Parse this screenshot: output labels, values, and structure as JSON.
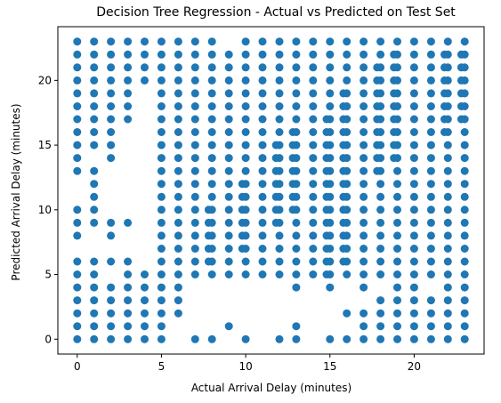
{
  "chart_data": {
    "type": "scatter",
    "title": "Decision Tree Regression - Actual vs Predicted on Test Set",
    "xlabel": "Actual Arrival Delay (minutes)",
    "ylabel": "Predicted Arrival Delay (minutes)",
    "xlim": [
      -1.15,
      24.15
    ],
    "ylim": [
      -1.15,
      24.15
    ],
    "xticks": [
      0,
      5,
      10,
      15,
      20
    ],
    "yticks": [
      0,
      5,
      10,
      15,
      20
    ],
    "grid": false,
    "marker_color": "#1f77b4",
    "series": [
      {
        "columns": [
          {
            "x": 0,
            "y": [
              0,
              1,
              2,
              3,
              4,
              5,
              6,
              8,
              9,
              10,
              13,
              14,
              15,
              16,
              17,
              18,
              19,
              20,
              21,
              22,
              23
            ]
          },
          {
            "x": 1,
            "y": [
              0,
              1,
              2,
              3,
              4,
              5,
              6,
              9,
              10,
              11,
              12,
              13,
              15,
              16,
              17,
              18,
              19,
              20,
              21,
              22,
              23
            ]
          },
          {
            "x": 2,
            "y": [
              0,
              1,
              2,
              3,
              4,
              6,
              8,
              9,
              14,
              15,
              16,
              17,
              18,
              19,
              20,
              21,
              22,
              23
            ]
          },
          {
            "x": 3,
            "y": [
              0,
              1,
              2,
              3,
              4,
              5,
              6,
              9,
              17,
              18,
              19,
              20,
              21,
              22,
              23
            ]
          },
          {
            "x": 4,
            "y": [
              0,
              1,
              2,
              3,
              4,
              5,
              20,
              21,
              22,
              23
            ]
          },
          {
            "x": 5,
            "y": [
              0,
              1,
              2,
              3,
              4,
              5,
              6,
              7,
              8,
              9,
              10,
              11,
              12,
              13,
              14,
              15,
              16,
              17,
              18,
              19,
              20,
              21,
              22,
              23
            ]
          },
          {
            "x": 6,
            "y": [
              2,
              3,
              4,
              5,
              6,
              7,
              8,
              9,
              10,
              11,
              12,
              13,
              14,
              15,
              16,
              17,
              18,
              19,
              20,
              21,
              22,
              23
            ]
          },
          {
            "x": 7,
            "y": [
              0,
              5,
              6,
              7,
              8,
              9,
              10,
              11,
              12,
              13,
              14,
              15,
              16,
              17,
              18,
              19,
              20,
              21,
              22,
              23
            ]
          },
          {
            "x": 8,
            "y": [
              0,
              5,
              6,
              7,
              8,
              9,
              10,
              11,
              12,
              13,
              14,
              15,
              16,
              17,
              18,
              19,
              20,
              21,
              22,
              23
            ]
          },
          {
            "x": 9,
            "y": [
              1,
              5,
              6,
              7,
              8,
              9,
              10,
              11,
              12,
              13,
              14,
              15,
              16,
              17,
              18,
              19,
              20,
              21,
              22
            ]
          },
          {
            "x": 10,
            "y": [
              0,
              5,
              6,
              7,
              8,
              9,
              10,
              11,
              12,
              13,
              14,
              15,
              16,
              17,
              18,
              19,
              20,
              21,
              22,
              23
            ]
          },
          {
            "x": 11,
            "y": [
              5,
              6,
              7,
              8,
              9,
              10,
              11,
              12,
              13,
              14,
              15,
              16,
              17,
              18,
              19,
              20,
              21,
              22,
              23
            ]
          },
          {
            "x": 12,
            "y": [
              0,
              5,
              6,
              7,
              8,
              9,
              10,
              11,
              12,
              13,
              14,
              15,
              16,
              17,
              18,
              19,
              20,
              21,
              22,
              23
            ]
          },
          {
            "x": 13,
            "y": [
              0,
              1,
              4,
              5,
              6,
              7,
              8,
              9,
              10,
              11,
              12,
              13,
              14,
              15,
              16,
              17,
              18,
              19,
              20,
              21,
              22,
              23
            ]
          },
          {
            "x": 14,
            "y": [
              5,
              6,
              7,
              8,
              9,
              10,
              11,
              12,
              13,
              14,
              15,
              16,
              17,
              18,
              19,
              20,
              21,
              22,
              23
            ]
          },
          {
            "x": 15,
            "y": [
              0,
              4,
              5,
              6,
              7,
              8,
              9,
              10,
              11,
              12,
              13,
              14,
              15,
              16,
              17,
              18,
              19,
              20,
              21,
              22,
              23
            ]
          },
          {
            "x": 16,
            "y": [
              0,
              2,
              5,
              6,
              7,
              8,
              9,
              10,
              11,
              12,
              13,
              14,
              15,
              16,
              17,
              18,
              19,
              20,
              21,
              22,
              23
            ]
          },
          {
            "x": 17,
            "y": [
              0,
              1,
              2,
              4,
              5,
              6,
              7,
              8,
              9,
              10,
              11,
              12,
              13,
              14,
              15,
              16,
              17,
              18,
              19,
              20,
              21,
              22,
              23
            ]
          },
          {
            "x": 18,
            "y": [
              0,
              1,
              2,
              3,
              5,
              6,
              7,
              8,
              9,
              10,
              11,
              12,
              13,
              14,
              15,
              16,
              17,
              18,
              19,
              20,
              21,
              22,
              23
            ]
          },
          {
            "x": 19,
            "y": [
              0,
              1,
              2,
              3,
              4,
              5,
              6,
              7,
              8,
              9,
              10,
              11,
              12,
              13,
              14,
              15,
              16,
              17,
              18,
              19,
              20,
              21,
              22,
              23
            ]
          },
          {
            "x": 20,
            "y": [
              0,
              1,
              2,
              3,
              4,
              5,
              6,
              7,
              8,
              9,
              10,
              11,
              12,
              13,
              14,
              15,
              16,
              17,
              18,
              19,
              20,
              21,
              22,
              23
            ]
          },
          {
            "x": 21,
            "y": [
              0,
              1,
              2,
              3,
              5,
              6,
              7,
              8,
              9,
              10,
              11,
              12,
              13,
              14,
              15,
              16,
              17,
              18,
              19,
              20,
              21,
              22,
              23
            ]
          },
          {
            "x": 22,
            "y": [
              0,
              1,
              2,
              3,
              4,
              5,
              6,
              7,
              8,
              9,
              10,
              11,
              12,
              13,
              14,
              15,
              16,
              17,
              18,
              19,
              20,
              21,
              22,
              23
            ]
          },
          {
            "x": 23,
            "y": [
              0,
              1,
              2,
              3,
              4,
              5,
              6,
              7,
              8,
              9,
              10,
              11,
              12,
              13,
              14,
              15,
              16,
              17,
              18,
              19,
              20,
              21,
              22,
              23
            ]
          }
        ],
        "extra_points": [
          [
            14.8,
            5
          ],
          [
            14.8,
            6
          ],
          [
            14.8,
            7
          ],
          [
            14.8,
            8
          ],
          [
            14.8,
            9
          ],
          [
            14.8,
            10
          ],
          [
            14.8,
            11
          ],
          [
            14.8,
            12
          ],
          [
            14.8,
            13
          ],
          [
            14.8,
            14
          ],
          [
            14.8,
            15
          ],
          [
            14.8,
            16
          ],
          [
            14.8,
            17
          ],
          [
            15.8,
            6
          ],
          [
            15.8,
            7
          ],
          [
            15.8,
            8
          ],
          [
            15.8,
            9
          ],
          [
            15.8,
            10
          ],
          [
            15.8,
            11
          ],
          [
            15.8,
            12
          ],
          [
            15.8,
            13
          ],
          [
            15.8,
            14
          ],
          [
            15.8,
            15
          ],
          [
            15.8,
            16
          ],
          [
            15.8,
            17
          ],
          [
            15.8,
            18
          ],
          [
            15.8,
            19
          ],
          [
            17.8,
            13
          ],
          [
            17.8,
            14
          ],
          [
            17.8,
            15
          ],
          [
            17.8,
            16
          ],
          [
            17.8,
            17
          ],
          [
            17.8,
            18
          ],
          [
            17.8,
            19
          ],
          [
            17.8,
            20
          ],
          [
            17.8,
            21
          ],
          [
            18.8,
            14
          ],
          [
            18.8,
            15
          ],
          [
            18.8,
            16
          ],
          [
            18.8,
            17
          ],
          [
            18.8,
            18
          ],
          [
            18.8,
            19
          ],
          [
            18.8,
            20
          ],
          [
            18.8,
            21
          ],
          [
            18.8,
            22
          ],
          [
            21.8,
            16
          ],
          [
            21.8,
            17
          ],
          [
            21.8,
            18
          ],
          [
            21.8,
            19
          ],
          [
            21.8,
            20
          ],
          [
            21.8,
            21
          ],
          [
            21.8,
            22
          ],
          [
            22.8,
            17
          ],
          [
            22.8,
            18
          ],
          [
            22.8,
            19
          ],
          [
            22.8,
            20
          ],
          [
            22.8,
            21
          ],
          [
            22.8,
            22
          ],
          [
            11.8,
            9
          ],
          [
            11.8,
            10
          ],
          [
            11.8,
            11
          ],
          [
            11.8,
            12
          ],
          [
            11.8,
            13
          ],
          [
            11.8,
            14
          ],
          [
            11.8,
            15
          ],
          [
            12.8,
            10
          ],
          [
            12.8,
            11
          ],
          [
            12.8,
            12
          ],
          [
            12.8,
            13
          ],
          [
            12.8,
            14
          ],
          [
            12.8,
            15
          ],
          [
            12.8,
            16
          ],
          [
            9.8,
            7
          ],
          [
            9.8,
            8
          ],
          [
            9.8,
            9
          ],
          [
            9.8,
            10
          ],
          [
            9.8,
            11
          ],
          [
            9.8,
            12
          ],
          [
            7.8,
            6
          ],
          [
            7.8,
            7
          ],
          [
            7.8,
            8
          ],
          [
            7.8,
            9
          ],
          [
            7.8,
            10
          ]
        ]
      }
    ]
  }
}
